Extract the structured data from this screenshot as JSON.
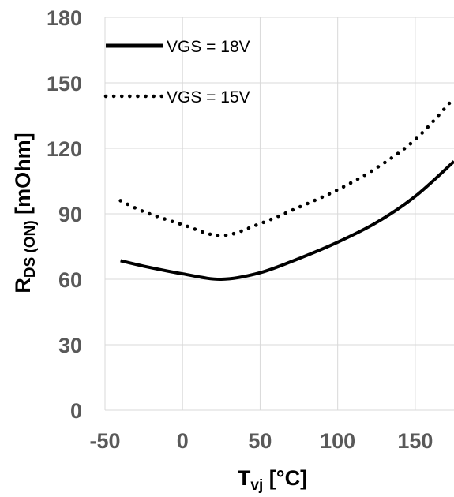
{
  "chart_data": {
    "type": "line",
    "xlabel": {
      "main": "T",
      "sub": "vj",
      "rest": " [°C]"
    },
    "ylabel": {
      "main": "R",
      "sub": "DS (ON)",
      "rest": " [mOhm]"
    },
    "xlim": [
      -50,
      175
    ],
    "ylim": [
      0,
      180
    ],
    "xticks": [
      "-50",
      "0",
      "50",
      "100",
      "150"
    ],
    "yticks": [
      "0",
      "30",
      "60",
      "90",
      "120",
      "150",
      "180"
    ],
    "grid": true,
    "legend_position": "top-left",
    "series": [
      {
        "name": "VGS = 18V",
        "style": "solid",
        "color": "#000000",
        "x": [
          -40,
          -25,
          0,
          25,
          50,
          75,
          100,
          125,
          150,
          175
        ],
        "y": [
          68.5,
          66,
          62.5,
          60,
          63,
          69.5,
          77,
          86,
          98,
          114
        ]
      },
      {
        "name": "VGS = 15V",
        "style": "dotted",
        "color": "#000000",
        "x": [
          -40,
          -25,
          0,
          25,
          50,
          75,
          100,
          125,
          150,
          175
        ],
        "y": [
          96,
          91,
          85,
          80,
          85.5,
          93,
          101,
          111,
          124,
          143
        ]
      }
    ]
  }
}
